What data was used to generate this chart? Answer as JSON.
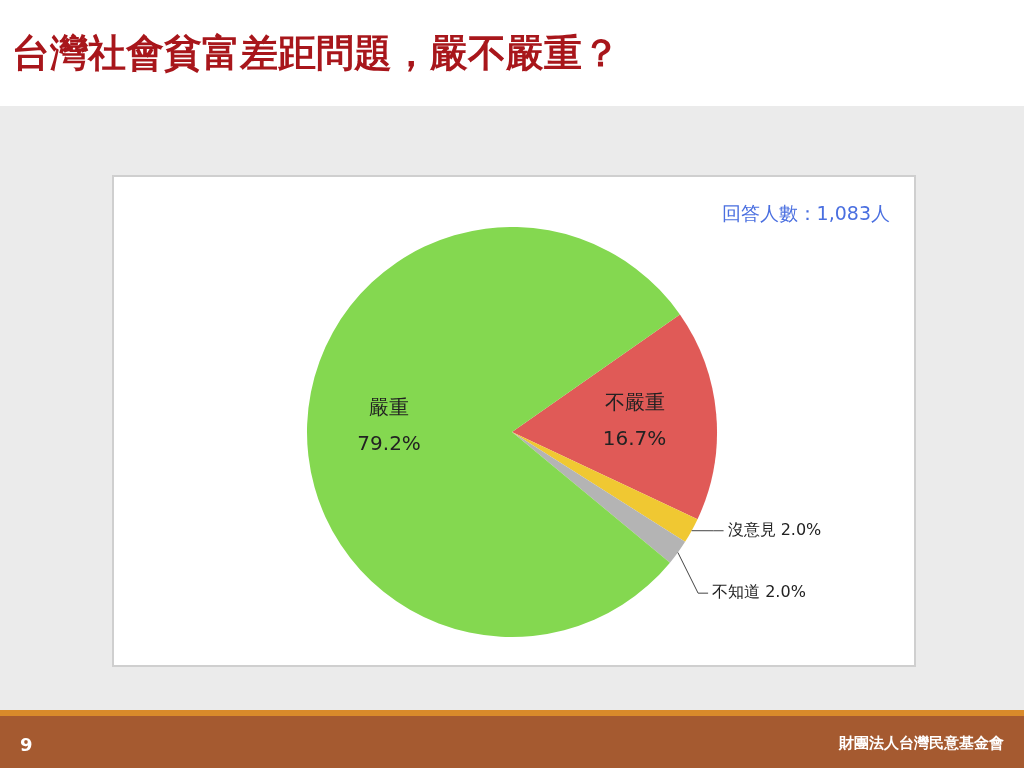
{
  "chart_data": {
    "type": "pie",
    "title": "台灣社會貧富差距問題，嚴不嚴重？",
    "categories": [
      "不嚴重",
      "沒意見",
      "不知道",
      "嚴重"
    ],
    "values": [
      16.7,
      2.0,
      2.0,
      79.2
    ],
    "colors": [
      "#e05a57",
      "#f0c832",
      "#b4b4b4",
      "#84d850"
    ],
    "value_labels": [
      "16.7%",
      "2.0%",
      "2.0%",
      "79.2%"
    ],
    "legend": false,
    "annotations": [
      "回答人數：1,083人",
      "9",
      "財團法人台灣民意基金會"
    ]
  }
}
